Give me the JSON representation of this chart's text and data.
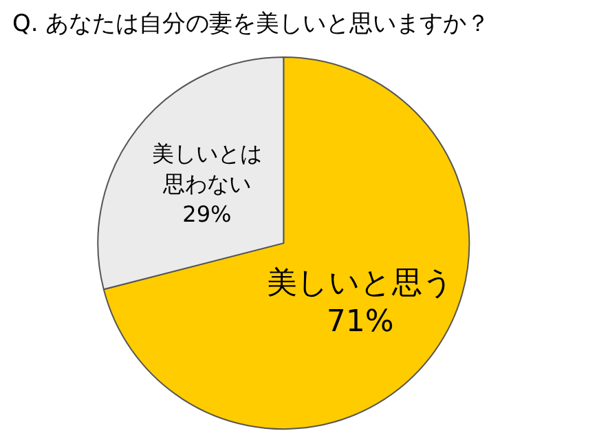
{
  "chart_data": {
    "type": "pie",
    "title": "Q. あなたは自分の妻を美しいと思いますか？",
    "categories": [
      "美しいと思う",
      "美しいとは思わない"
    ],
    "values": [
      71,
      29
    ],
    "colors": [
      "#ffcc00",
      "#ebebeb"
    ],
    "value_labels": [
      "71%",
      "29%"
    ],
    "legend": false
  }
}
